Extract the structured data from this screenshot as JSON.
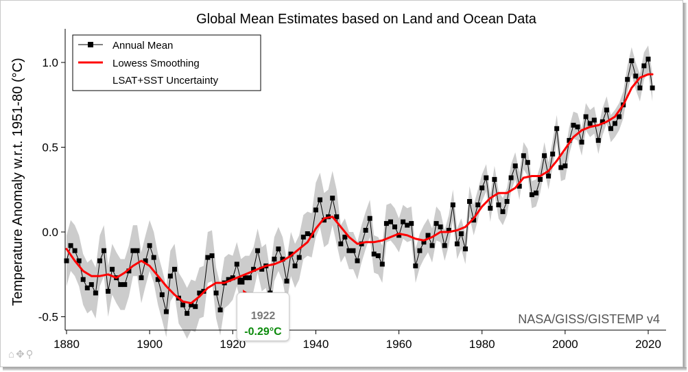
{
  "chart_data": {
    "type": "line",
    "title": "Global Mean Estimates based on Land and Ocean Data",
    "xlabel": "",
    "ylabel": "Temperature Anomaly w.r.t. 1951-80 (°C)",
    "xlim": [
      1880,
      2024
    ],
    "ylim": [
      -0.6,
      1.2
    ],
    "x_ticks": [
      "1880",
      "1900",
      "1920",
      "1940",
      "1960",
      "1980",
      "2000",
      "2020"
    ],
    "y_ticks": [
      "-0.5",
      "0.0",
      "0.5",
      "1.0"
    ],
    "legend": {
      "placement": "top-left",
      "entries": [
        "Annual Mean",
        "Lowess Smoothing",
        "LSAT+SST Uncertainty"
      ]
    },
    "watermark": "NASA/GISS/GISTEMP v4",
    "series": [
      {
        "name": "Annual Mean",
        "color": "#000000",
        "x": [
          1880,
          1881,
          1882,
          1883,
          1884,
          1885,
          1886,
          1887,
          1888,
          1889,
          1890,
          1891,
          1892,
          1893,
          1894,
          1895,
          1896,
          1897,
          1898,
          1899,
          1900,
          1901,
          1902,
          1903,
          1904,
          1905,
          1906,
          1907,
          1908,
          1909,
          1910,
          1911,
          1912,
          1913,
          1914,
          1915,
          1916,
          1917,
          1918,
          1919,
          1920,
          1921,
          1922,
          1923,
          1924,
          1925,
          1926,
          1927,
          1928,
          1929,
          1930,
          1931,
          1932,
          1933,
          1934,
          1935,
          1936,
          1937,
          1938,
          1939,
          1940,
          1941,
          1942,
          1943,
          1944,
          1945,
          1946,
          1947,
          1948,
          1949,
          1950,
          1951,
          1952,
          1953,
          1954,
          1955,
          1956,
          1957,
          1958,
          1959,
          1960,
          1961,
          1962,
          1963,
          1964,
          1965,
          1966,
          1967,
          1968,
          1969,
          1970,
          1971,
          1972,
          1973,
          1974,
          1975,
          1976,
          1977,
          1978,
          1979,
          1980,
          1981,
          1982,
          1983,
          1984,
          1985,
          1986,
          1987,
          1988,
          1989,
          1990,
          1991,
          1992,
          1993,
          1994,
          1995,
          1996,
          1997,
          1998,
          1999,
          2000,
          2001,
          2002,
          2003,
          2004,
          2005,
          2006,
          2007,
          2008,
          2009,
          2010,
          2011,
          2012,
          2013,
          2014,
          2015,
          2016,
          2017,
          2018,
          2019,
          2020,
          2021
        ],
        "values": [
          -0.17,
          -0.08,
          -0.11,
          -0.17,
          -0.28,
          -0.33,
          -0.31,
          -0.36,
          -0.17,
          -0.11,
          -0.35,
          -0.22,
          -0.27,
          -0.31,
          -0.31,
          -0.23,
          -0.11,
          -0.11,
          -0.27,
          -0.17,
          -0.08,
          -0.15,
          -0.28,
          -0.37,
          -0.47,
          -0.26,
          -0.22,
          -0.39,
          -0.43,
          -0.48,
          -0.43,
          -0.44,
          -0.36,
          -0.35,
          -0.15,
          -0.14,
          -0.36,
          -0.46,
          -0.3,
          -0.28,
          -0.27,
          -0.19,
          -0.29,
          -0.27,
          -0.27,
          -0.22,
          -0.11,
          -0.22,
          -0.2,
          -0.36,
          -0.16,
          -0.1,
          -0.16,
          -0.29,
          -0.13,
          -0.2,
          -0.15,
          -0.03,
          -0.01,
          -0.02,
          0.13,
          0.19,
          0.07,
          0.09,
          0.2,
          0.09,
          -0.07,
          -0.03,
          -0.11,
          -0.11,
          -0.17,
          -0.07,
          0.01,
          0.08,
          -0.13,
          -0.14,
          -0.19,
          0.05,
          0.06,
          0.03,
          -0.02,
          0.06,
          0.04,
          0.05,
          -0.2,
          -0.11,
          -0.06,
          -0.02,
          -0.08,
          0.05,
          0.03,
          -0.08,
          0.01,
          0.16,
          -0.07,
          -0.01,
          -0.1,
          0.18,
          0.07,
          0.16,
          0.26,
          0.32,
          0.14,
          0.31,
          0.16,
          0.12,
          0.18,
          0.32,
          0.39,
          0.27,
          0.45,
          0.41,
          0.22,
          0.23,
          0.31,
          0.45,
          0.33,
          0.46,
          0.61,
          0.38,
          0.39,
          0.54,
          0.63,
          0.62,
          0.53,
          0.68,
          0.64,
          0.66,
          0.54,
          0.65,
          0.72,
          0.61,
          0.64,
          0.68,
          0.75,
          0.9,
          1.01,
          0.92,
          0.85,
          0.98,
          1.02,
          0.85
        ]
      },
      {
        "name": "Lowess Smoothing",
        "color": "#ff0000",
        "x": [
          1880,
          1882,
          1884,
          1886,
          1888,
          1890,
          1892,
          1894,
          1896,
          1898,
          1900,
          1902,
          1904,
          1906,
          1908,
          1910,
          1912,
          1914,
          1916,
          1918,
          1920,
          1922,
          1924,
          1926,
          1928,
          1930,
          1932,
          1934,
          1936,
          1938,
          1940,
          1942,
          1944,
          1946,
          1948,
          1950,
          1952,
          1954,
          1956,
          1958,
          1960,
          1962,
          1964,
          1966,
          1968,
          1970,
          1972,
          1974,
          1976,
          1978,
          1980,
          1982,
          1984,
          1986,
          1988,
          1990,
          1992,
          1994,
          1996,
          1998,
          2000,
          2002,
          2004,
          2006,
          2008,
          2010,
          2012,
          2014,
          2016,
          2018,
          2020,
          2021
        ],
        "values": [
          -0.1,
          -0.17,
          -0.23,
          -0.26,
          -0.26,
          -0.25,
          -0.27,
          -0.24,
          -0.2,
          -0.17,
          -0.2,
          -0.26,
          -0.32,
          -0.37,
          -0.41,
          -0.42,
          -0.38,
          -0.33,
          -0.3,
          -0.3,
          -0.28,
          -0.26,
          -0.24,
          -0.22,
          -0.2,
          -0.19,
          -0.17,
          -0.14,
          -0.1,
          -0.06,
          0.02,
          0.08,
          0.09,
          0.03,
          -0.03,
          -0.07,
          -0.06,
          -0.06,
          -0.05,
          -0.03,
          -0.01,
          -0.02,
          -0.04,
          -0.05,
          -0.03,
          0.0,
          0.0,
          0.01,
          0.03,
          0.08,
          0.15,
          0.2,
          0.23,
          0.23,
          0.26,
          0.32,
          0.33,
          0.33,
          0.36,
          0.42,
          0.49,
          0.56,
          0.6,
          0.62,
          0.63,
          0.65,
          0.68,
          0.75,
          0.85,
          0.91,
          0.93,
          0.93
        ]
      },
      {
        "name": "LSAT+SST Uncertainty",
        "color": "#cccccc",
        "x": [
          1880,
          1881,
          1882,
          1883,
          1884,
          1885,
          1886,
          1887,
          1888,
          1889,
          1890,
          1891,
          1892,
          1893,
          1894,
          1895,
          1896,
          1897,
          1898,
          1899,
          1900,
          1901,
          1902,
          1903,
          1904,
          1905,
          1906,
          1907,
          1908,
          1909,
          1910,
          1911,
          1912,
          1913,
          1914,
          1915,
          1916,
          1917,
          1918,
          1919,
          1920,
          1921,
          1922,
          1923,
          1924,
          1925,
          1926,
          1927,
          1928,
          1929,
          1930,
          1931,
          1932,
          1933,
          1934,
          1935,
          1936,
          1937,
          1938,
          1939,
          1940,
          1941,
          1942,
          1943,
          1944,
          1945,
          1946,
          1947,
          1948,
          1949,
          1950,
          1951,
          1952,
          1953,
          1954,
          1955,
          1956,
          1957,
          1958,
          1959,
          1960,
          1961,
          1962,
          1963,
          1964,
          1965,
          1966,
          1967,
          1968,
          1969,
          1970,
          1971,
          1972,
          1973,
          1974,
          1975,
          1976,
          1977,
          1978,
          1979,
          1980,
          1981,
          1982,
          1983,
          1984,
          1985,
          1986,
          1987,
          1988,
          1989,
          1990,
          1991,
          1992,
          1993,
          1994,
          1995,
          1996,
          1997,
          1998,
          1999,
          2000,
          2001,
          2002,
          2003,
          2004,
          2005,
          2006,
          2007,
          2008,
          2009,
          2010,
          2011,
          2012,
          2013,
          2014,
          2015,
          2016,
          2017,
          2018,
          2019,
          2020,
          2021
        ],
        "lower": [
          -0.32,
          -0.23,
          -0.26,
          -0.32,
          -0.43,
          -0.48,
          -0.46,
          -0.51,
          -0.32,
          -0.26,
          -0.5,
          -0.37,
          -0.42,
          -0.46,
          -0.46,
          -0.38,
          -0.26,
          -0.26,
          -0.42,
          -0.32,
          -0.23,
          -0.3,
          -0.43,
          -0.52,
          -0.62,
          -0.41,
          -0.37,
          -0.54,
          -0.58,
          -0.63,
          -0.58,
          -0.59,
          -0.51,
          -0.5,
          -0.3,
          -0.29,
          -0.51,
          -0.61,
          -0.45,
          -0.43,
          -0.4,
          -0.32,
          -0.42,
          -0.4,
          -0.4,
          -0.35,
          -0.24,
          -0.35,
          -0.33,
          -0.49,
          -0.29,
          -0.23,
          -0.29,
          -0.42,
          -0.26,
          -0.33,
          -0.28,
          -0.16,
          -0.14,
          -0.15,
          -0.03,
          0.03,
          -0.09,
          -0.07,
          0.04,
          -0.07,
          -0.18,
          -0.14,
          -0.22,
          -0.22,
          -0.28,
          -0.18,
          -0.1,
          -0.03,
          -0.24,
          -0.25,
          -0.3,
          -0.06,
          -0.05,
          -0.08,
          -0.12,
          -0.04,
          -0.06,
          -0.05,
          -0.3,
          -0.21,
          -0.16,
          -0.12,
          -0.18,
          -0.05,
          -0.06,
          -0.17,
          -0.08,
          0.07,
          -0.16,
          -0.1,
          -0.19,
          0.09,
          -0.02,
          0.07,
          0.18,
          0.24,
          0.06,
          0.23,
          0.08,
          0.04,
          0.1,
          0.24,
          0.31,
          0.19,
          0.37,
          0.33,
          0.14,
          0.15,
          0.23,
          0.37,
          0.25,
          0.38,
          0.53,
          0.3,
          0.31,
          0.46,
          0.55,
          0.54,
          0.45,
          0.6,
          0.56,
          0.58,
          0.46,
          0.57,
          0.64,
          0.53,
          0.56,
          0.6,
          0.67,
          0.82,
          0.93,
          0.84,
          0.77,
          0.9,
          0.94,
          0.77
        ],
        "upper": [
          -0.02,
          0.07,
          0.04,
          -0.02,
          -0.13,
          -0.18,
          -0.16,
          -0.21,
          -0.02,
          0.04,
          -0.2,
          -0.07,
          -0.12,
          -0.16,
          -0.16,
          -0.08,
          0.04,
          0.04,
          -0.12,
          -0.02,
          0.07,
          0.0,
          -0.13,
          -0.22,
          -0.32,
          -0.11,
          -0.07,
          -0.24,
          -0.28,
          -0.33,
          -0.28,
          -0.29,
          -0.21,
          -0.2,
          0.0,
          0.01,
          -0.21,
          -0.31,
          -0.15,
          -0.13,
          -0.14,
          -0.06,
          -0.16,
          -0.14,
          -0.14,
          -0.09,
          0.02,
          -0.09,
          -0.07,
          -0.23,
          -0.03,
          0.03,
          -0.03,
          -0.16,
          0.0,
          -0.07,
          -0.02,
          0.1,
          0.12,
          0.11,
          0.29,
          0.35,
          0.23,
          0.25,
          0.36,
          0.25,
          0.04,
          0.08,
          0.0,
          0.0,
          -0.06,
          0.04,
          0.12,
          0.19,
          -0.02,
          -0.03,
          -0.08,
          0.16,
          0.17,
          0.14,
          0.08,
          0.16,
          0.14,
          0.15,
          -0.1,
          -0.01,
          0.04,
          0.08,
          0.02,
          0.15,
          0.12,
          0.01,
          0.1,
          0.25,
          0.02,
          0.08,
          -0.01,
          0.27,
          0.16,
          0.25,
          0.34,
          0.4,
          0.22,
          0.39,
          0.24,
          0.2,
          0.26,
          0.4,
          0.47,
          0.35,
          0.53,
          0.49,
          0.3,
          0.31,
          0.39,
          0.53,
          0.41,
          0.54,
          0.69,
          0.46,
          0.47,
          0.62,
          0.71,
          0.7,
          0.61,
          0.76,
          0.72,
          0.74,
          0.62,
          0.73,
          0.8,
          0.69,
          0.72,
          0.76,
          0.83,
          0.98,
          1.09,
          1.0,
          0.93,
          1.06,
          1.1,
          0.93
        ]
      }
    ],
    "tooltip": {
      "year": "1922",
      "value": "-0.29°C",
      "x": 1922,
      "y": -0.29
    },
    "grid": false
  }
}
